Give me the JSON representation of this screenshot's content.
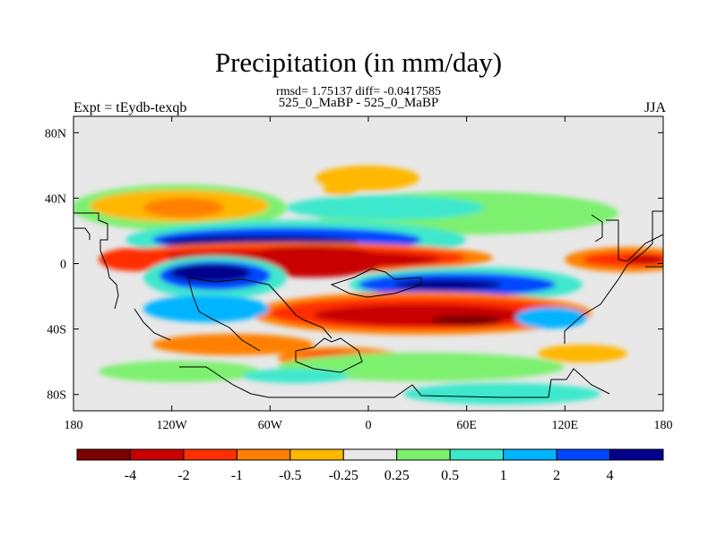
{
  "chart_data": {
    "type": "heatmap",
    "title": "Precipitation (in mm/day)",
    "subtitle_stats": "rmsd= 1.75137 diff= -0.0417585",
    "subtitle_case": "525_0_MaBP - 525_0_MaBP",
    "left_label": "Expt = tEydb-texqb",
    "right_label": "JJA",
    "xaxis": {
      "ticks": [
        -180,
        -120,
        -60,
        0,
        60,
        120,
        180
      ],
      "tick_labels": [
        "180",
        "120W",
        "60W",
        "0",
        "60E",
        "120E",
        "180"
      ],
      "range": [
        -180,
        180
      ]
    },
    "yaxis": {
      "ticks": [
        80,
        40,
        0,
        -40,
        -80
      ],
      "tick_labels": [
        "80N",
        "40N",
        "0",
        "40S",
        "80S"
      ],
      "range": [
        -90,
        90
      ]
    },
    "colorbar": {
      "levels": [
        -4,
        -2,
        -1,
        -0.5,
        -0.25,
        0.25,
        0.5,
        1,
        2,
        4
      ],
      "labels": [
        "-4",
        "-2",
        "-1",
        "-0.5",
        "-0.25",
        "0.25",
        "0.5",
        "1",
        "2",
        "4"
      ],
      "colors": [
        "#7d0000",
        "#c80000",
        "#ff2f00",
        "#ff8000",
        "#ffb700",
        "#e8e8e8",
        "#7df06f",
        "#3ce8cc",
        "#00b4ff",
        "#0047ff",
        "#00008c"
      ]
    },
    "features": [
      {
        "name": "equatorial-wet-band",
        "sign": "negative",
        "peak_value": -4,
        "lon_range": [
          -130,
          60
        ],
        "lat_range": [
          -15,
          15
        ]
      },
      {
        "name": "north-blue-band",
        "sign": "positive",
        "peak_value": 4,
        "lon_range": [
          -100,
          40
        ],
        "lat_range": [
          8,
          20
        ]
      },
      {
        "name": "south-tropical-blue",
        "sign": "positive",
        "peak_value": 4,
        "lon_range": [
          -120,
          -60
        ],
        "lat_range": [
          -15,
          0
        ]
      },
      {
        "name": "south-blue-band",
        "sign": "positive",
        "peak_value": 4,
        "lon_range": [
          0,
          100
        ],
        "lat_range": [
          -20,
          -8
        ]
      },
      {
        "name": "southern-red-band",
        "sign": "negative",
        "peak_value": -4,
        "lon_range": [
          -60,
          110
        ],
        "lat_range": [
          -45,
          -20
        ]
      },
      {
        "name": "east-pacific-red",
        "sign": "negative",
        "peak_value": -2,
        "lon_range": [
          100,
          180
        ],
        "lat_range": [
          -5,
          10
        ]
      }
    ],
    "background_value": 0,
    "continents": true
  }
}
